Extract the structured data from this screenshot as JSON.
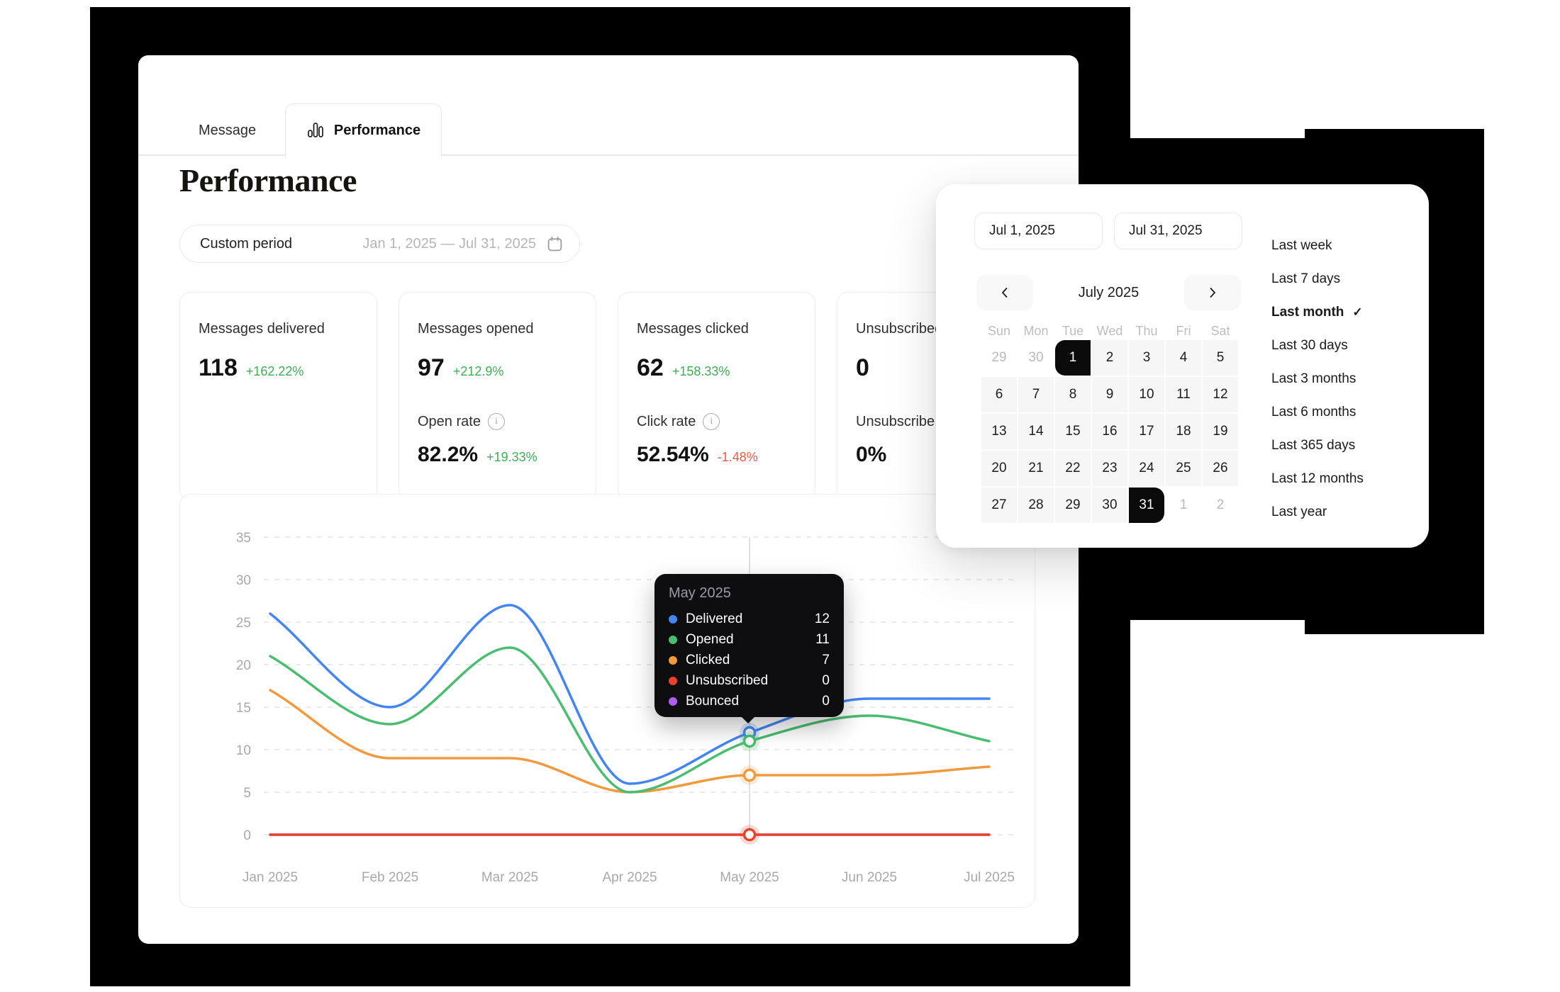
{
  "tabs": {
    "message": "Message",
    "performance": "Performance"
  },
  "page": {
    "title": "Performance"
  },
  "period_field": {
    "label": "Custom period",
    "value": "Jan 1, 2025 — Jul 31, 2025"
  },
  "stats": [
    {
      "title": "Messages delivered",
      "value": "118",
      "delta": "+162.22%",
      "delta_dir": "up"
    },
    {
      "title": "Messages opened",
      "value": "97",
      "delta": "+212.9%",
      "delta_dir": "up",
      "rate_label": "Open rate",
      "rate_value": "82.2%",
      "rate_delta": "+19.33%",
      "rate_delta_dir": "up"
    },
    {
      "title": "Messages clicked",
      "value": "62",
      "delta": "+158.33%",
      "delta_dir": "up",
      "rate_label": "Click rate",
      "rate_value": "52.54%",
      "rate_delta": "-1.48%",
      "rate_delta_dir": "down"
    },
    {
      "title": "Unsubscribed",
      "value": "0",
      "rate_label": "Unsubscribe rate",
      "rate_value": "0%"
    }
  ],
  "chart_data": {
    "type": "line",
    "title": "",
    "categories": [
      "Jan 2025",
      "Feb 2025",
      "Mar 2025",
      "Apr 2025",
      "May 2025",
      "Jun 2025",
      "Jul 2025"
    ],
    "series": [
      {
        "name": "Delivered",
        "color": "#4385f3",
        "values": [
          26,
          15,
          27,
          6,
          12,
          16,
          16
        ],
        "show_marker": true
      },
      {
        "name": "Opened",
        "color": "#49bd70",
        "values": [
          21,
          13,
          22,
          5,
          11,
          14,
          11
        ],
        "show_marker": true
      },
      {
        "name": "Clicked",
        "color": "#f2993e",
        "values": [
          17,
          9,
          9,
          5,
          7,
          7,
          8
        ],
        "show_marker": true
      },
      {
        "name": "Unsubscribed",
        "color": "#e8432a",
        "values": [
          0,
          0,
          0,
          0,
          0,
          0,
          0
        ],
        "show_marker": true
      },
      {
        "name": "Bounced",
        "color": "#b05cf5",
        "values": [
          0,
          0,
          0,
          0,
          0,
          0,
          0
        ],
        "show_marker": false
      }
    ],
    "ylim": [
      0,
      35
    ],
    "ytick_step": 5,
    "grid": "horizontal-dashed",
    "legend": "none",
    "highlight_index": 4
  },
  "tooltip": {
    "title": "May 2025",
    "rows": [
      {
        "label": "Delivered",
        "value": "12",
        "color": "#4385f3"
      },
      {
        "label": "Opened",
        "value": "11",
        "color": "#49bd70"
      },
      {
        "label": "Clicked",
        "value": "7",
        "color": "#f2993e"
      },
      {
        "label": "Unsubscribed",
        "value": "0",
        "color": "#e8432a"
      },
      {
        "label": "Bounced",
        "value": "0",
        "color": "#b05cf5"
      }
    ]
  },
  "datepicker": {
    "start": "Jul 1, 2025",
    "end": "Jul 31, 2025",
    "month_label": "July 2025",
    "day_headers": [
      "Sun",
      "Mon",
      "Tue",
      "Wed",
      "Thu",
      "Fri",
      "Sat"
    ],
    "weeks": [
      [
        {
          "d": "29",
          "muted": true
        },
        {
          "d": "30",
          "muted": true
        },
        {
          "d": "1",
          "sel": "start"
        },
        {
          "d": "2"
        },
        {
          "d": "3"
        },
        {
          "d": "4"
        },
        {
          "d": "5"
        }
      ],
      [
        {
          "d": "6"
        },
        {
          "d": "7"
        },
        {
          "d": "8"
        },
        {
          "d": "9"
        },
        {
          "d": "10"
        },
        {
          "d": "11"
        },
        {
          "d": "12"
        }
      ],
      [
        {
          "d": "13"
        },
        {
          "d": "14"
        },
        {
          "d": "15"
        },
        {
          "d": "16"
        },
        {
          "d": "17"
        },
        {
          "d": "18"
        },
        {
          "d": "19"
        }
      ],
      [
        {
          "d": "20"
        },
        {
          "d": "21"
        },
        {
          "d": "22"
        },
        {
          "d": "23"
        },
        {
          "d": "24"
        },
        {
          "d": "25"
        },
        {
          "d": "26"
        }
      ],
      [
        {
          "d": "27"
        },
        {
          "d": "28"
        },
        {
          "d": "29"
        },
        {
          "d": "30"
        },
        {
          "d": "31",
          "sel": "end"
        },
        {
          "d": "1",
          "muted": true
        },
        {
          "d": "2",
          "muted": true
        }
      ]
    ],
    "presets": [
      {
        "label": "Last week"
      },
      {
        "label": "Last 7 days"
      },
      {
        "label": "Last month",
        "selected": true
      },
      {
        "label": "Last 30 days"
      },
      {
        "label": "Last 3 months"
      },
      {
        "label": "Last 6 months"
      },
      {
        "label": "Last 365 days"
      },
      {
        "label": "Last 12 months"
      },
      {
        "label": "Last year"
      }
    ]
  },
  "icons": {
    "check": "✓",
    "info": "i"
  },
  "colors": {
    "delta_up": "#3caf53",
    "delta_down": "#ec5b41",
    "tooltip_bg": "#0e0e10",
    "selected_day_bg": "#0a0a0a",
    "grid_line": "#e4e4e4",
    "axis_text": "#a8a8a8"
  }
}
